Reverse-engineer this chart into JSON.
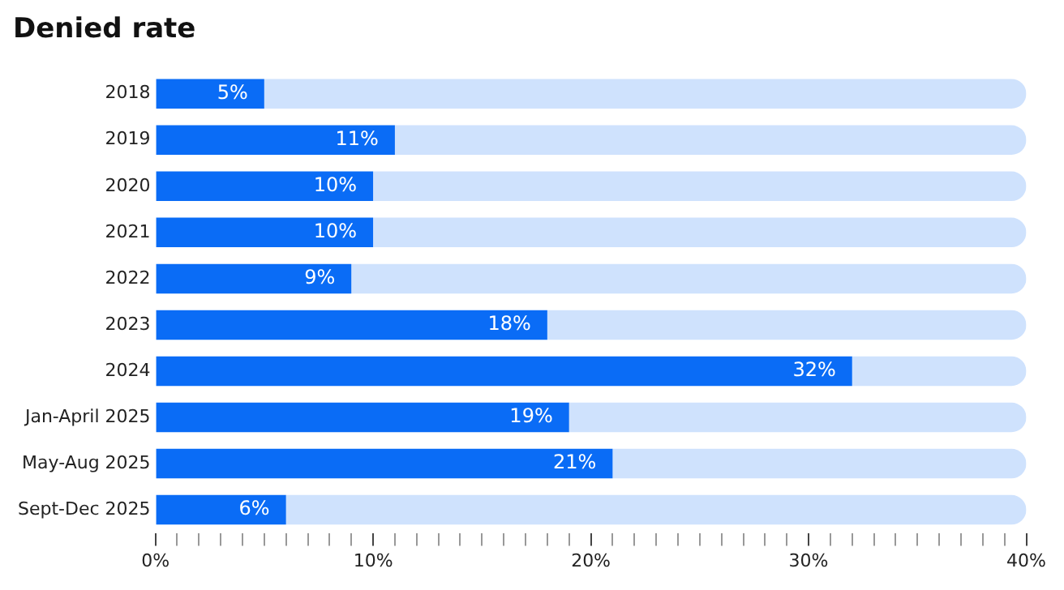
{
  "chart_data": {
    "type": "bar",
    "orientation": "horizontal",
    "title": "Denied rate",
    "categories": [
      "2018",
      "2019",
      "2020",
      "2021",
      "2022",
      "2023",
      "2024",
      "Jan-April 2025",
      "May-Aug 2025",
      "Sept-Dec 2025"
    ],
    "stacked": true,
    "series": [
      {
        "color": "#0a6cf6",
        "values": [
          5,
          11,
          10,
          10,
          9,
          18,
          32,
          19,
          21,
          6
        ],
        "value_labels": [
          "5%",
          "11%",
          "10%",
          "10%",
          "9%",
          "18%",
          "32%",
          "19%",
          "21%",
          "6%"
        ]
      },
      {
        "color": "#cfe2fd",
        "values": [
          35,
          29,
          30,
          30,
          31,
          22,
          8,
          21,
          19,
          34
        ]
      }
    ],
    "xlim": [
      0,
      40
    ],
    "xticks": [
      {
        "value": 0,
        "label": "0%"
      },
      {
        "value": 1,
        "label": null
      },
      {
        "value": 2,
        "label": null
      },
      {
        "value": 3,
        "label": null
      },
      {
        "value": 4,
        "label": null
      },
      {
        "value": 5,
        "label": null
      },
      {
        "value": 6,
        "label": null
      },
      {
        "value": 7,
        "label": null
      },
      {
        "value": 8,
        "label": null
      },
      {
        "value": 9,
        "label": null
      },
      {
        "value": 10,
        "label": "10%"
      },
      {
        "value": 11,
        "label": null
      },
      {
        "value": 12,
        "label": null
      },
      {
        "value": 13,
        "label": null
      },
      {
        "value": 14,
        "label": null
      },
      {
        "value": 15,
        "label": null
      },
      {
        "value": 16,
        "label": null
      },
      {
        "value": 17,
        "label": null
      },
      {
        "value": 18,
        "label": null
      },
      {
        "value": 19,
        "label": null
      },
      {
        "value": 20,
        "label": "20%"
      },
      {
        "value": 21,
        "label": null
      },
      {
        "value": 22,
        "label": null
      },
      {
        "value": 23,
        "label": null
      },
      {
        "value": 24,
        "label": null
      },
      {
        "value": 25,
        "label": null
      },
      {
        "value": 26,
        "label": null
      },
      {
        "value": 27,
        "label": null
      },
      {
        "value": 28,
        "label": null
      },
      {
        "value": 29,
        "label": null
      },
      {
        "value": 30,
        "label": "30%"
      },
      {
        "value": 31,
        "label": null
      },
      {
        "value": 32,
        "label": null
      },
      {
        "value": 33,
        "label": null
      },
      {
        "value": 34,
        "label": null
      },
      {
        "value": 35,
        "label": null
      },
      {
        "value": 36,
        "label": null
      },
      {
        "value": 37,
        "label": null
      },
      {
        "value": 38,
        "label": null
      },
      {
        "value": 39,
        "label": null
      },
      {
        "value": 40,
        "label": "40%"
      }
    ],
    "grid": false,
    "legend": false
  }
}
